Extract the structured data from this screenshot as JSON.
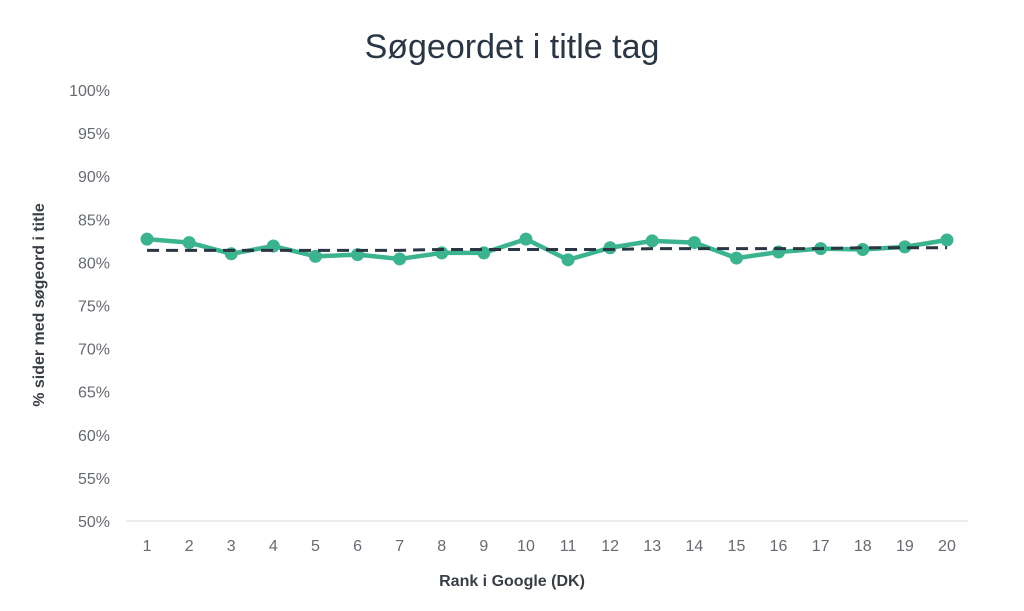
{
  "chart_data": {
    "type": "line",
    "title": "Søgeordet i title tag",
    "xlabel": "Rank i Google (DK)",
    "ylabel": "% sider med søgeord i title",
    "categories": [
      "1",
      "2",
      "3",
      "4",
      "5",
      "6",
      "7",
      "8",
      "9",
      "10",
      "11",
      "12",
      "13",
      "14",
      "15",
      "16",
      "17",
      "18",
      "19",
      "20"
    ],
    "ylim": [
      50,
      100
    ],
    "yticks": [
      "50%",
      "55%",
      "60%",
      "65%",
      "70%",
      "75%",
      "80%",
      "85%",
      "90%",
      "95%",
      "100%"
    ],
    "ytick_values": [
      50,
      55,
      60,
      65,
      70,
      75,
      80,
      85,
      90,
      95,
      100
    ],
    "grid": false,
    "legend": "none",
    "series": [
      {
        "values": [
          82.7,
          82.3,
          81.0,
          81.9,
          80.7,
          80.9,
          80.4,
          81.1,
          81.1,
          82.7,
          80.3,
          81.7,
          82.5,
          82.3,
          80.5,
          81.2,
          81.6,
          81.5,
          81.8,
          82.6
        ],
        "color": "#3bb38f",
        "style": "solid-markers"
      },
      {
        "values": [
          81.4,
          81.4,
          81.4,
          81.4,
          81.4,
          81.4,
          81.4,
          81.5,
          81.5,
          81.5,
          81.5,
          81.5,
          81.6,
          81.6,
          81.6,
          81.6,
          81.6,
          81.7,
          81.7,
          81.7
        ],
        "color": "#2b3644",
        "style": "dashed-trend"
      }
    ]
  }
}
